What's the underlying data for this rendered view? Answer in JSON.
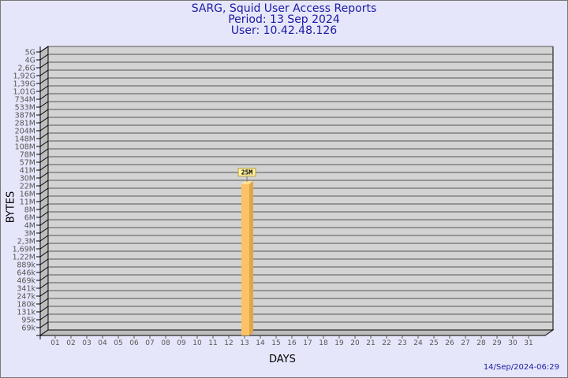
{
  "chart_data": {
    "type": "bar",
    "title": "SARG, Squid User Access Reports",
    "subtitle": [
      "Period: 13 Sep 2024",
      "User: 10.42.48.126"
    ],
    "xlabel": "DAYS",
    "ylabel": "BYTES",
    "y_scale": "log",
    "y_ticks": [
      "5G",
      "4G",
      "2,6G",
      "1,92G",
      "1,39G",
      "1,01G",
      "734M",
      "533M",
      "387M",
      "281M",
      "204M",
      "148M",
      "108M",
      "78M",
      "57M",
      "41M",
      "30M",
      "22M",
      "16M",
      "11M",
      "8M",
      "6M",
      "4M",
      "3M",
      "2,3M",
      "1,69M",
      "1,22M",
      "889k",
      "646k",
      "469k",
      "341k",
      "247k",
      "180k",
      "131k",
      "95k",
      "69k"
    ],
    "categories": [
      "01",
      "02",
      "03",
      "04",
      "05",
      "06",
      "07",
      "08",
      "09",
      "10",
      "11",
      "12",
      "13",
      "14",
      "15",
      "16",
      "17",
      "18",
      "19",
      "20",
      "21",
      "22",
      "23",
      "24",
      "25",
      "26",
      "27",
      "28",
      "29",
      "30",
      "31"
    ],
    "bars": [
      {
        "day": "13",
        "value_label": "25M",
        "value": 25000000
      }
    ],
    "grid": true,
    "colors": {
      "bar": "#fdc263",
      "bar_side": "#e0a64a",
      "plot": "#d3d3d3",
      "title": "#1a1aa6"
    }
  },
  "footer_timestamp": "14/Sep/2024-06:29"
}
